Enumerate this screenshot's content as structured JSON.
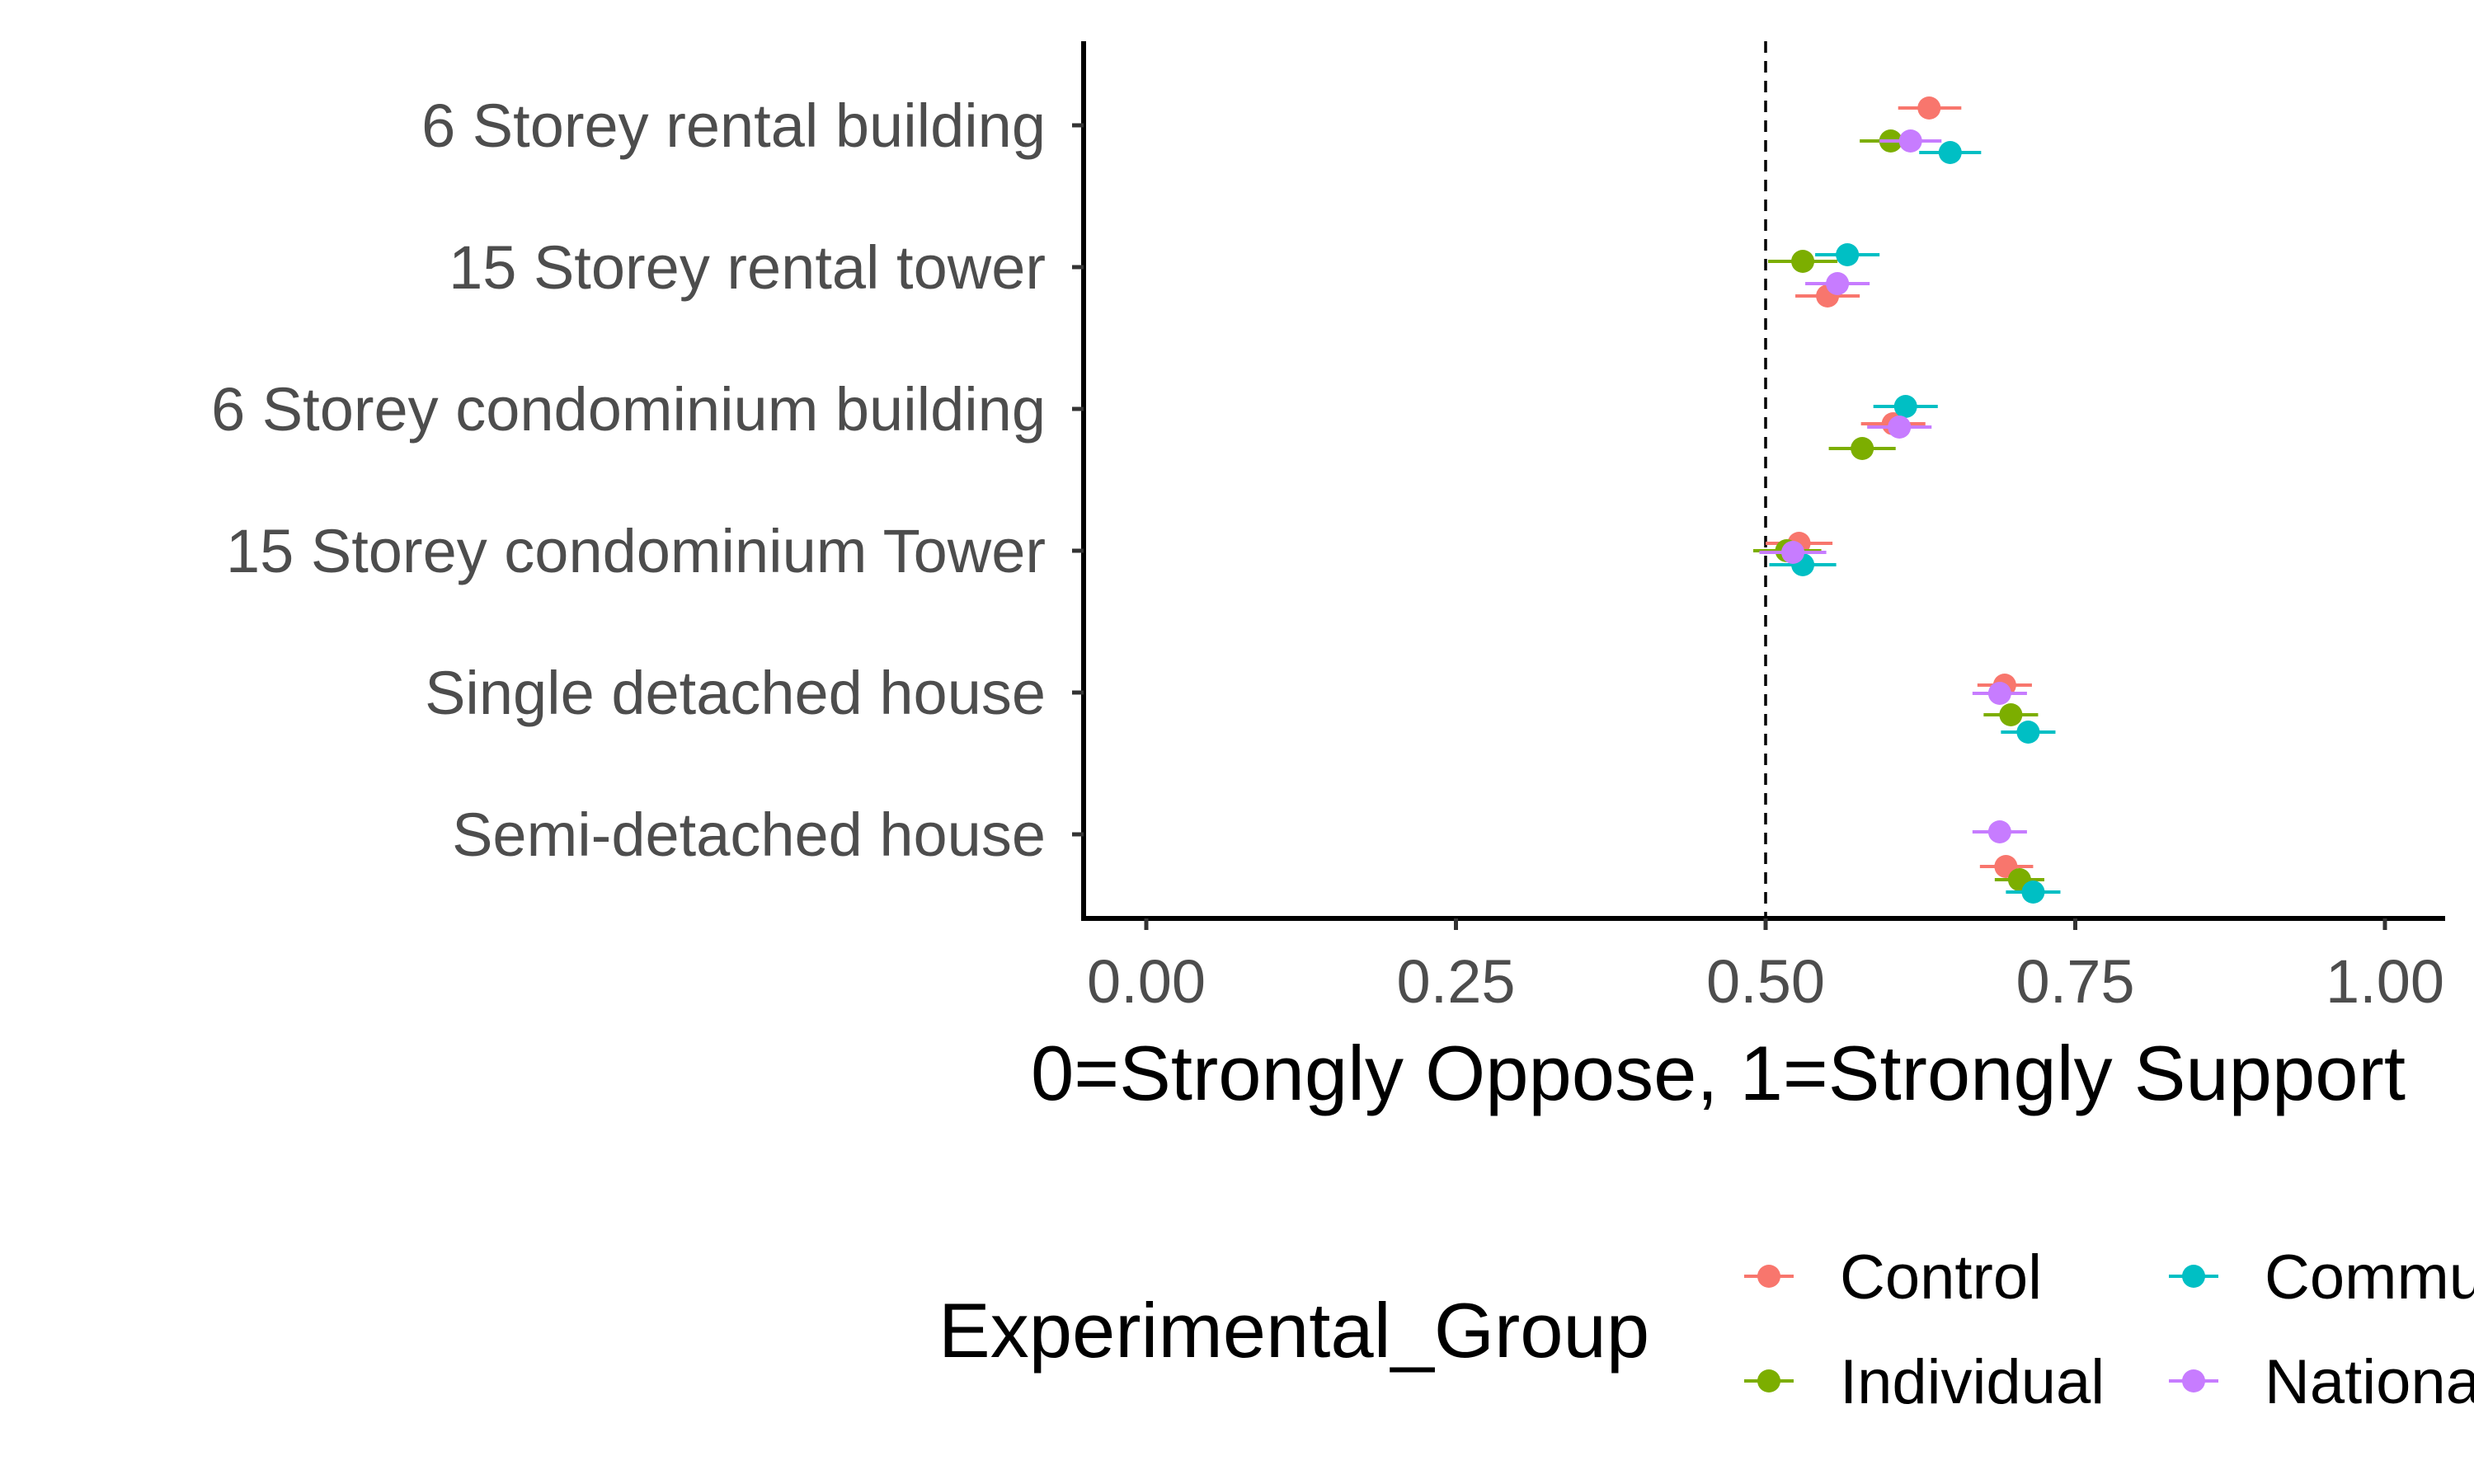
{
  "chart_data": {
    "type": "dot-and-whisker",
    "orientation": "horizontal",
    "xlabel": "0=Strongly Oppose, 1=Strongly Support",
    "ylabel": "",
    "xlim": [
      0,
      1
    ],
    "xticks": [
      0,
      0.25,
      0.5,
      0.75,
      1.0
    ],
    "xtick_labels": [
      "0.00",
      "0.25",
      "0.50",
      "0.75",
      "1.00"
    ],
    "reference_line": {
      "x": 0.5,
      "style": "dashed"
    },
    "grid": false,
    "categories": [
      "6 Storey rental building",
      "15 Storey rental tower",
      "6 Storey condominium building",
      "15 Storey condominium Tower",
      "Single detached house",
      "Semi-detached house"
    ],
    "legend": {
      "title": "Experimental_Group",
      "position": "bottom",
      "entries": [
        "Control",
        "Individual",
        "Community",
        "National"
      ],
      "visible_labels": [
        "Control",
        "Individual",
        "Commu",
        "Nationa"
      ]
    },
    "series": [
      {
        "name": "Control",
        "color": "#F8766D",
        "values": [
          0.632,
          0.55,
          0.603,
          0.527,
          0.693,
          0.694
        ],
        "ci_low": [
          0.607,
          0.524,
          0.577,
          0.5,
          0.671,
          0.673
        ],
        "ci_high": [
          0.658,
          0.576,
          0.629,
          0.554,
          0.715,
          0.716
        ]
      },
      {
        "name": "Individual",
        "color": "#7CAE00",
        "values": [
          0.601,
          0.53,
          0.578,
          0.517,
          0.698,
          0.705
        ],
        "ci_low": [
          0.576,
          0.502,
          0.551,
          0.49,
          0.676,
          0.685
        ],
        "ci_high": [
          0.626,
          0.558,
          0.605,
          0.545,
          0.72,
          0.725
        ]
      },
      {
        "name": "Community",
        "color": "#00BFC4",
        "values": [
          0.649,
          0.566,
          0.613,
          0.53,
          0.712,
          0.716
        ],
        "ci_low": [
          0.624,
          0.54,
          0.587,
          0.503,
          0.69,
          0.694
        ],
        "ci_high": [
          0.674,
          0.592,
          0.639,
          0.557,
          0.734,
          0.738
        ]
      },
      {
        "name": "National",
        "color": "#C77CFF",
        "values": [
          0.617,
          0.558,
          0.608,
          0.522,
          0.689,
          0.689
        ],
        "ci_low": [
          0.592,
          0.532,
          0.582,
          0.495,
          0.667,
          0.667
        ],
        "ci_high": [
          0.642,
          0.584,
          0.634,
          0.549,
          0.711,
          0.711
        ]
      }
    ]
  }
}
